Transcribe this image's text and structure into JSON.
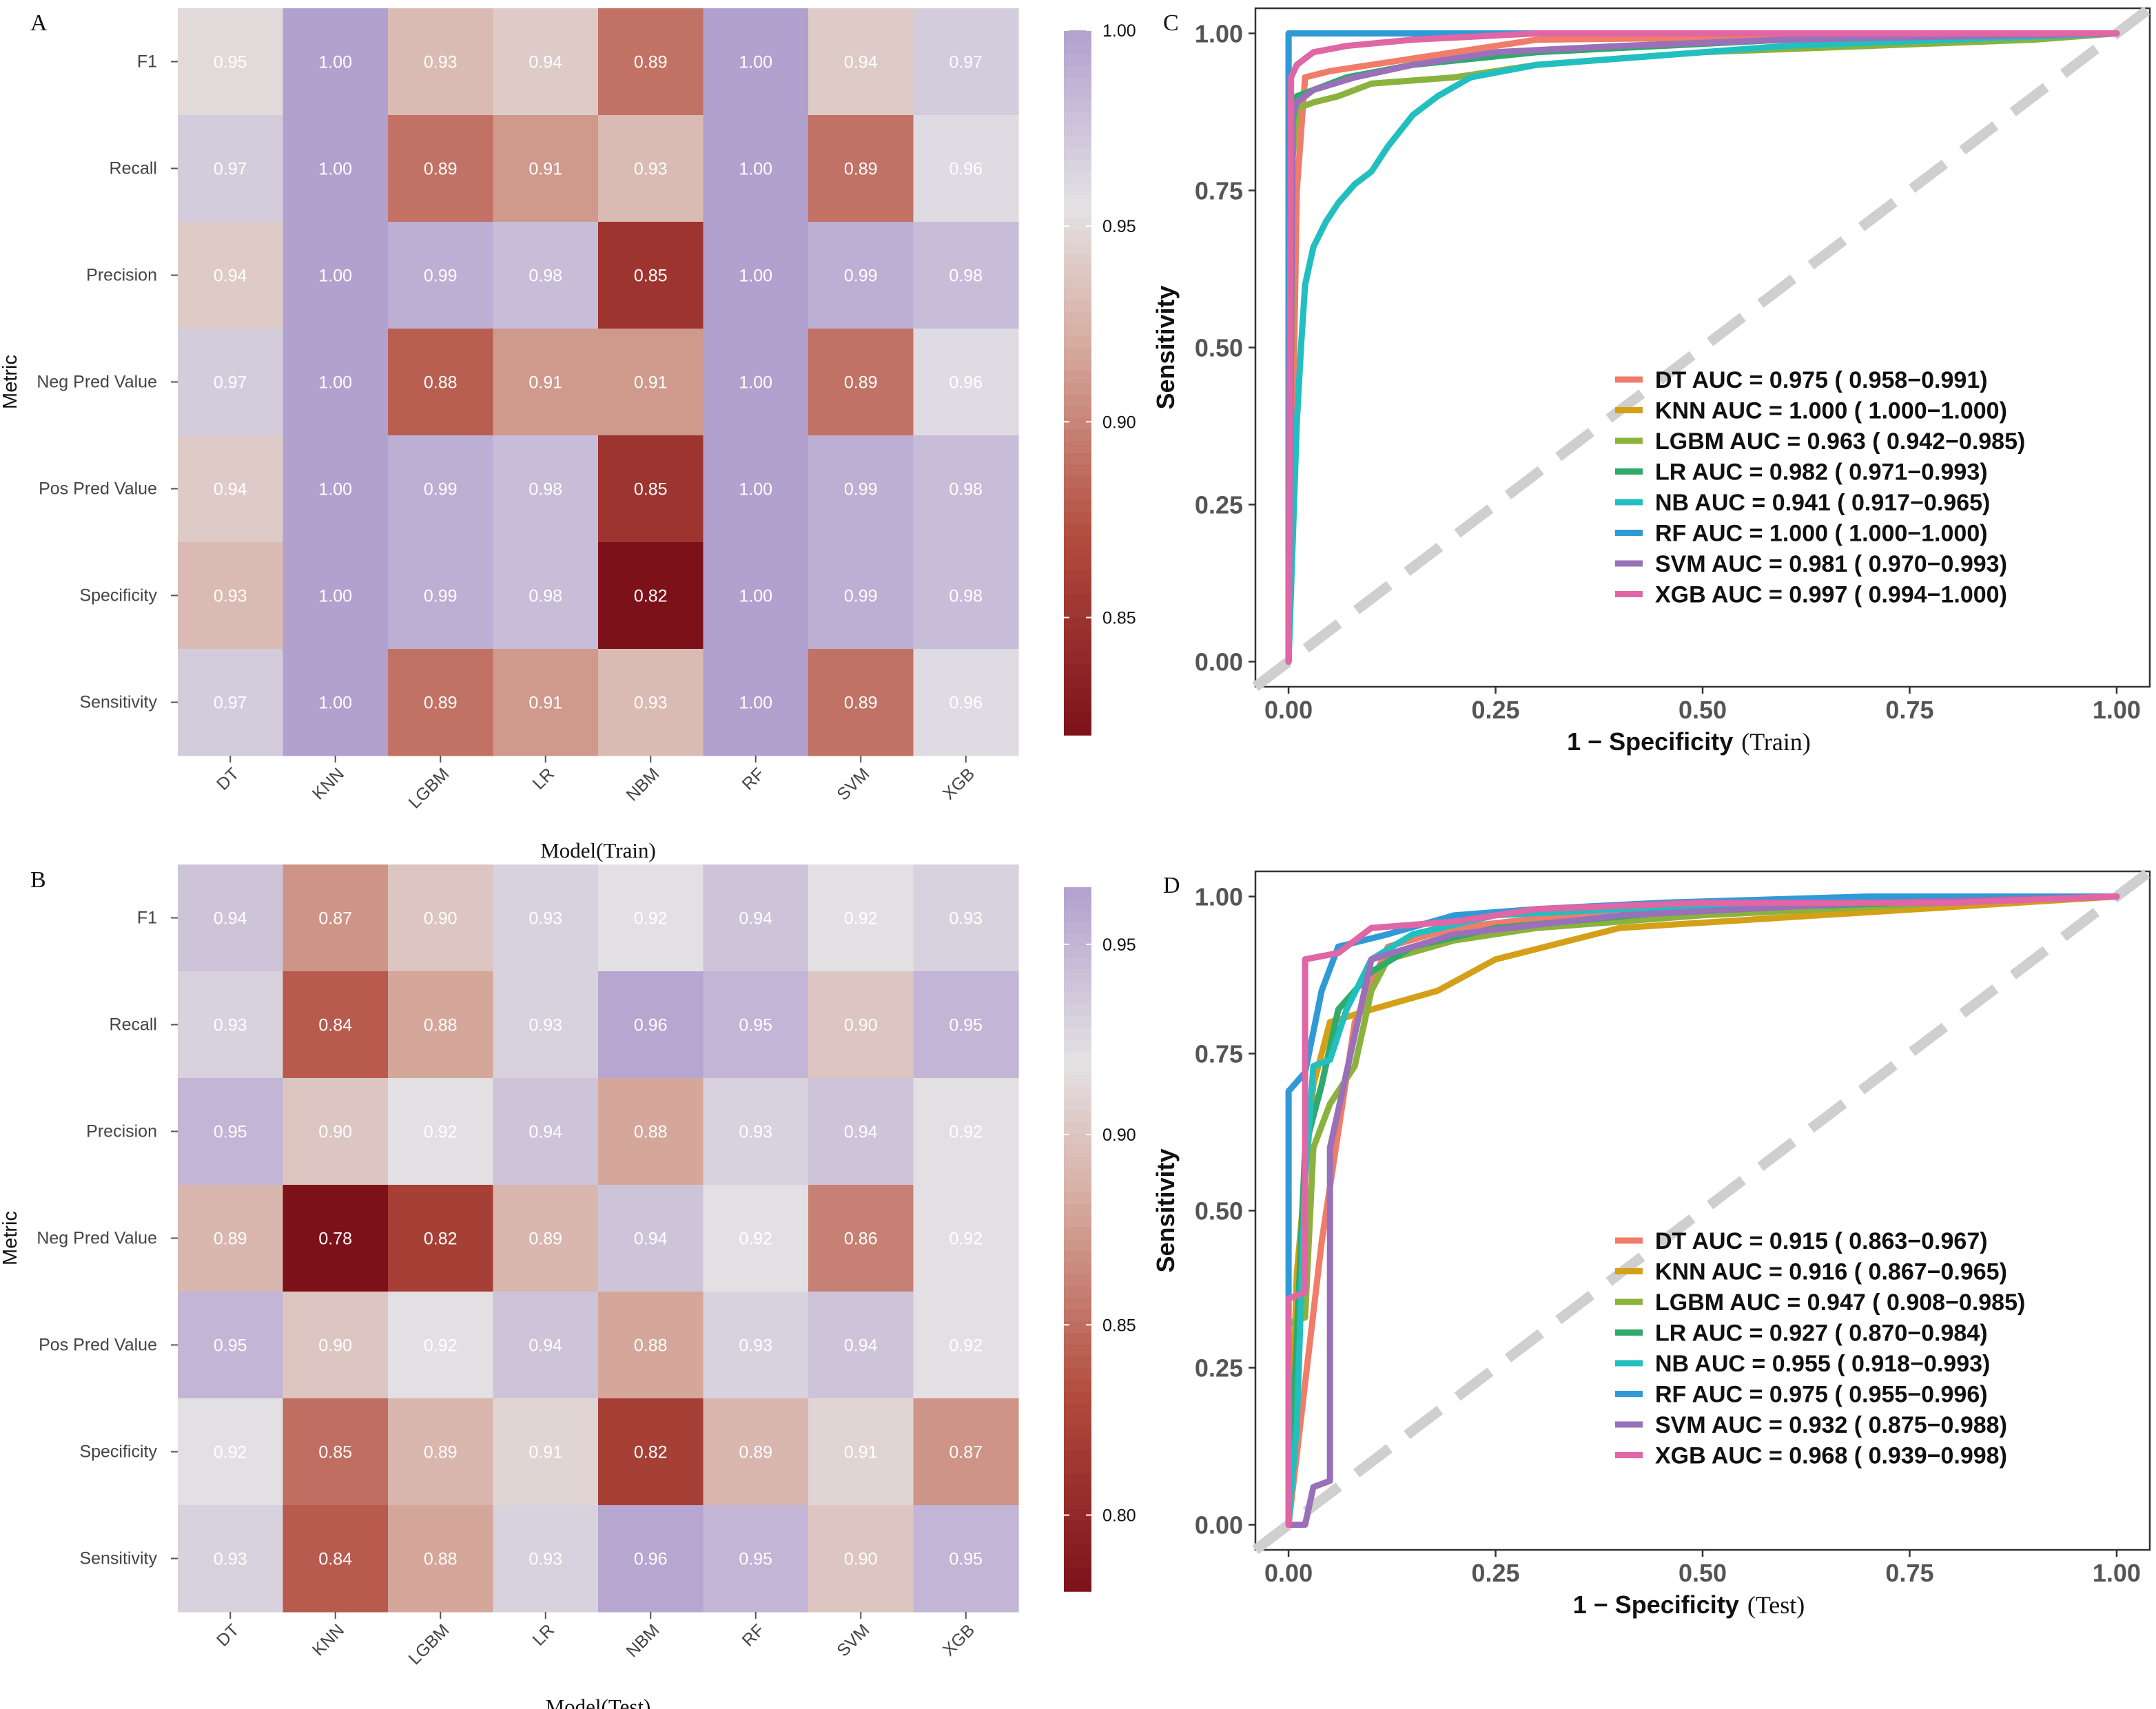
{
  "chart_data": [
    {
      "id": "A",
      "type": "heatmap",
      "panel_label": "A",
      "xlabel": "Model(Train)",
      "ylabel": "Metric",
      "columns": [
        "DT",
        "KNN",
        "LGBM",
        "LR",
        "NBM",
        "RF",
        "SVM",
        "XGB"
      ],
      "rows": [
        "F1",
        "Recall",
        "Precision",
        "Neg Pred Value",
        "Pos Pred Value",
        "Specificity",
        "Sensitivity"
      ],
      "values": [
        [
          0.95,
          1.0,
          0.93,
          0.94,
          0.89,
          1.0,
          0.94,
          0.97
        ],
        [
          0.97,
          1.0,
          0.89,
          0.91,
          0.93,
          1.0,
          0.89,
          0.96
        ],
        [
          0.94,
          1.0,
          0.99,
          0.98,
          0.85,
          1.0,
          0.99,
          0.98
        ],
        [
          0.97,
          1.0,
          0.88,
          0.91,
          0.91,
          1.0,
          0.89,
          0.96
        ],
        [
          0.94,
          1.0,
          0.99,
          0.98,
          0.85,
          1.0,
          0.99,
          0.98
        ],
        [
          0.93,
          1.0,
          0.99,
          0.98,
          0.82,
          1.0,
          0.99,
          0.98
        ],
        [
          0.97,
          1.0,
          0.89,
          0.91,
          0.93,
          1.0,
          0.89,
          0.96
        ]
      ],
      "color_range": [
        0.82,
        1.0
      ],
      "legend_ticks": [
        0.85,
        0.9,
        0.95,
        1.0
      ],
      "legend_labels": [
        "0.85",
        "0.90",
        "0.95",
        "1.00"
      ]
    },
    {
      "id": "B",
      "type": "heatmap",
      "panel_label": "B",
      "xlabel": "Model(Test)",
      "ylabel": "Metric",
      "columns": [
        "DT",
        "KNN",
        "LGBM",
        "LR",
        "NBM",
        "RF",
        "SVM",
        "XGB"
      ],
      "rows": [
        "F1",
        "Recall",
        "Precision",
        "Neg Pred Value",
        "Pos Pred Value",
        "Specificity",
        "Sensitivity"
      ],
      "values": [
        [
          0.94,
          0.87,
          0.9,
          0.93,
          0.92,
          0.94,
          0.92,
          0.93
        ],
        [
          0.93,
          0.84,
          0.88,
          0.93,
          0.96,
          0.95,
          0.9,
          0.95
        ],
        [
          0.95,
          0.9,
          0.92,
          0.94,
          0.88,
          0.93,
          0.94,
          0.92
        ],
        [
          0.89,
          0.78,
          0.82,
          0.89,
          0.94,
          0.92,
          0.86,
          0.92
        ],
        [
          0.95,
          0.9,
          0.92,
          0.94,
          0.88,
          0.93,
          0.94,
          0.92
        ],
        [
          0.92,
          0.85,
          0.89,
          0.91,
          0.82,
          0.89,
          0.91,
          0.87
        ],
        [
          0.93,
          0.84,
          0.88,
          0.93,
          0.96,
          0.95,
          0.9,
          0.95
        ]
      ],
      "color_range": [
        0.78,
        0.965
      ],
      "legend_ticks": [
        0.8,
        0.85,
        0.9,
        0.95
      ],
      "legend_labels": [
        "0.80",
        "0.85",
        "0.90",
        "0.95"
      ]
    },
    {
      "id": "C",
      "type": "line",
      "panel_label": "C",
      "xlabel_bold": "1 − Specificity",
      "xlabel_suffix": "(Train)",
      "ylabel": "Sensitivity",
      "xlim": [
        -0.04,
        1.04
      ],
      "ylim": [
        -0.04,
        1.04
      ],
      "x_ticks": [
        0,
        0.25,
        0.5,
        0.75,
        1.0
      ],
      "x_tick_labels": [
        "0.00",
        "0.25",
        "0.50",
        "0.75",
        "1.00"
      ],
      "y_ticks": [
        0,
        0.25,
        0.5,
        0.75,
        1.0
      ],
      "y_tick_labels": [
        "0.00",
        "0.25",
        "0.50",
        "0.75",
        "1.00"
      ],
      "legend_position": "bottom-right",
      "series": [
        {
          "name": "DT",
          "color": "#F07C6A",
          "legend": "DT AUC = 0.975 ( 0.958−0.991)",
          "x": [
            0,
            0.005,
            0.01,
            0.02,
            0.05,
            0.15,
            0.3,
            1
          ],
          "y": [
            0,
            0.35,
            0.75,
            0.93,
            0.94,
            0.96,
            0.99,
            1
          ]
        },
        {
          "name": "KNN",
          "color": "#D4A017",
          "legend": "KNN AUC = 1.000 ( 1.000−1.000)",
          "x": [
            0,
            0,
            1
          ],
          "y": [
            0,
            1,
            1
          ]
        },
        {
          "name": "LGBM",
          "color": "#8BB23D",
          "legend": "LGBM AUC = 0.963 ( 0.942−0.985)",
          "x": [
            0,
            0.005,
            0.01,
            0.03,
            0.06,
            0.1,
            0.2,
            0.3,
            0.5,
            0.7,
            0.9,
            1
          ],
          "y": [
            0,
            0.8,
            0.88,
            0.89,
            0.9,
            0.92,
            0.93,
            0.95,
            0.97,
            0.98,
            0.99,
            1
          ]
        },
        {
          "name": "LR",
          "color": "#2EAA6A",
          "legend": "LR AUC = 0.982 ( 0.971−0.993)",
          "x": [
            0,
            0.005,
            0.01,
            0.03,
            0.07,
            0.15,
            0.3,
            0.6,
            1
          ],
          "y": [
            0,
            0.86,
            0.9,
            0.91,
            0.93,
            0.95,
            0.97,
            0.99,
            1
          ]
        },
        {
          "name": "NB",
          "color": "#22BFC0",
          "legend": "NB AUC = 0.941 ( 0.917−0.965)",
          "x": [
            0,
            0.01,
            0.015,
            0.02,
            0.03,
            0.045,
            0.06,
            0.08,
            0.1,
            0.12,
            0.15,
            0.18,
            0.22,
            0.3,
            0.4,
            0.6,
            0.8,
            1
          ],
          "y": [
            0,
            0.38,
            0.5,
            0.6,
            0.66,
            0.7,
            0.73,
            0.76,
            0.78,
            0.82,
            0.87,
            0.9,
            0.93,
            0.95,
            0.96,
            0.98,
            0.99,
            1
          ]
        },
        {
          "name": "RF",
          "color": "#2F9AD6",
          "legend": "RF AUC = 1.000 ( 1.000−1.000)",
          "x": [
            0,
            0,
            1
          ],
          "y": [
            0,
            1,
            1
          ]
        },
        {
          "name": "SVM",
          "color": "#9A70B8",
          "legend": "SVM AUC = 0.981 ( 0.970−0.993)",
          "x": [
            0,
            0.005,
            0.01,
            0.03,
            0.08,
            0.15,
            0.25,
            0.4,
            0.6,
            1
          ],
          "y": [
            0,
            0.87,
            0.89,
            0.91,
            0.93,
            0.95,
            0.97,
            0.98,
            0.99,
            1
          ]
        },
        {
          "name": "XGB",
          "color": "#E066A6",
          "legend": "XGB AUC = 0.997 ( 0.994−1.000)",
          "x": [
            0,
            0.003,
            0.01,
            0.03,
            0.07,
            0.15,
            0.3,
            1
          ],
          "y": [
            0,
            0.93,
            0.95,
            0.97,
            0.98,
            0.99,
            1,
            1
          ]
        }
      ]
    },
    {
      "id": "D",
      "type": "line",
      "panel_label": "D",
      "xlabel_bold": "1 − Specificity",
      "xlabel_suffix": "(Test)",
      "ylabel": "Sensitivity",
      "xlim": [
        -0.04,
        1.04
      ],
      "ylim": [
        -0.04,
        1.04
      ],
      "x_ticks": [
        0,
        0.25,
        0.5,
        0.75,
        1.0
      ],
      "x_tick_labels": [
        "0.00",
        "0.25",
        "0.50",
        "0.75",
        "1.00"
      ],
      "y_ticks": [
        0,
        0.25,
        0.5,
        0.75,
        1.0
      ],
      "y_tick_labels": [
        "0.00",
        "0.25",
        "0.50",
        "0.75",
        "1.00"
      ],
      "legend_position": "bottom-right",
      "series": [
        {
          "name": "DT",
          "color": "#F07C6A",
          "legend": "DT AUC = 0.915 ( 0.863−0.967)",
          "x": [
            0,
            0.04,
            0.08,
            0.12,
            0.2,
            0.4,
            1
          ],
          "y": [
            0,
            0.45,
            0.8,
            0.92,
            0.95,
            0.98,
            1
          ]
        },
        {
          "name": "KNN",
          "color": "#D4A017",
          "legend": "KNN AUC = 0.916 ( 0.867−0.965)",
          "x": [
            0,
            0.01,
            0.03,
            0.05,
            0.1,
            0.18,
            0.25,
            0.4,
            1
          ],
          "y": [
            0,
            0.4,
            0.7,
            0.8,
            0.82,
            0.85,
            0.9,
            0.95,
            1
          ]
        },
        {
          "name": "LGBM",
          "color": "#8BB23D",
          "legend": "LGBM AUC = 0.947 ( 0.908−0.985)",
          "x": [
            0,
            0,
            0.02,
            0.03,
            0.05,
            0.08,
            0.1,
            0.12,
            0.2,
            0.3,
            0.5,
            0.8,
            1
          ],
          "y": [
            0,
            0.32,
            0.33,
            0.6,
            0.67,
            0.73,
            0.85,
            0.9,
            0.93,
            0.95,
            0.97,
            0.99,
            1
          ]
        },
        {
          "name": "LR",
          "color": "#2EAA6A",
          "legend": "LR AUC = 0.927 ( 0.870−0.984)",
          "x": [
            0,
            0.02,
            0.04,
            0.06,
            0.1,
            0.15,
            0.25,
            0.5,
            1
          ],
          "y": [
            0,
            0.6,
            0.7,
            0.82,
            0.88,
            0.92,
            0.95,
            0.98,
            1
          ]
        },
        {
          "name": "NB",
          "color": "#22BFC0",
          "legend": "NB AUC = 0.955 ( 0.918−0.993)",
          "x": [
            0,
            0.01,
            0.02,
            0.03,
            0.05,
            0.07,
            0.1,
            0.15,
            0.25,
            0.4,
            0.7,
            1
          ],
          "y": [
            0,
            0.16,
            0.55,
            0.73,
            0.74,
            0.82,
            0.9,
            0.94,
            0.97,
            0.98,
            0.99,
            1
          ]
        },
        {
          "name": "RF",
          "color": "#2F9AD6",
          "legend": "RF AUC = 0.975 ( 0.955−0.996)",
          "x": [
            0,
            0,
            0.02,
            0.04,
            0.06,
            0.12,
            0.2,
            0.3,
            0.45,
            0.7,
            1
          ],
          "y": [
            0,
            0.69,
            0.72,
            0.85,
            0.92,
            0.94,
            0.97,
            0.98,
            0.99,
            1,
            1
          ]
        },
        {
          "name": "SVM",
          "color": "#9A70B8",
          "legend": "SVM AUC = 0.932 ( 0.875−0.988)",
          "x": [
            0,
            0.02,
            0.03,
            0.05,
            0.05,
            0.1,
            0.2,
            0.4,
            0.7,
            1
          ],
          "y": [
            0,
            0,
            0.06,
            0.07,
            0.6,
            0.9,
            0.94,
            0.97,
            0.99,
            1
          ]
        },
        {
          "name": "XGB",
          "color": "#E066A6",
          "legend": "XGB AUC = 0.968 ( 0.939−0.998)",
          "x": [
            0,
            0,
            0.02,
            0.02,
            0.06,
            0.1,
            0.2,
            0.3,
            0.5,
            0.8,
            1
          ],
          "y": [
            0,
            0.36,
            0.37,
            0.9,
            0.91,
            0.95,
            0.96,
            0.98,
            0.99,
            0.99,
            1
          ]
        }
      ]
    }
  ]
}
